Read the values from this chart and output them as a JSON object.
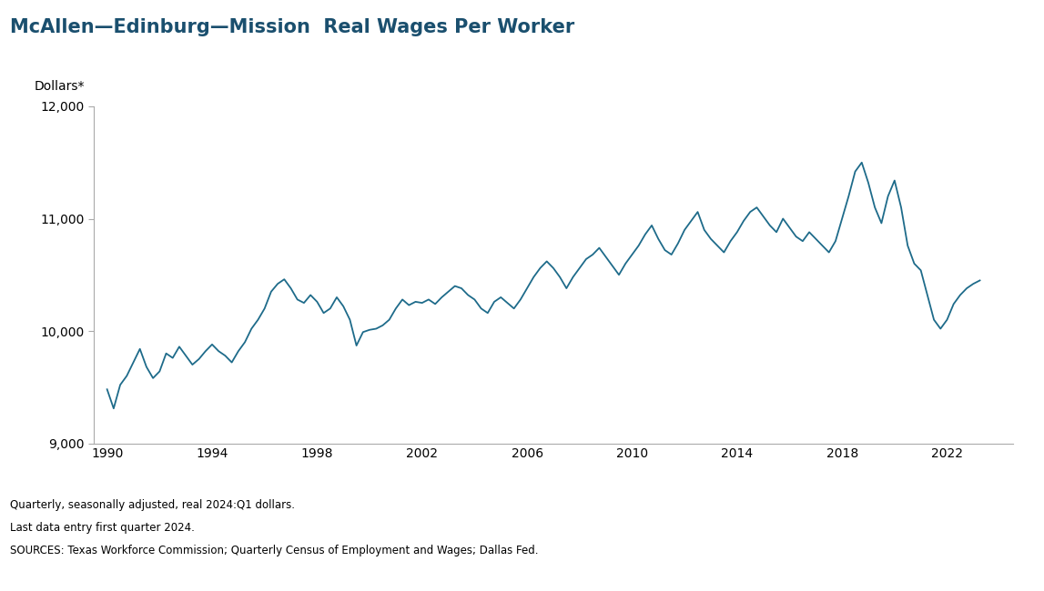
{
  "title": "McAllen—Edinburg—Mission  Real Wages Per Worker",
  "ylabel_text": "Dollars*",
  "ylim": [
    9000,
    12000
  ],
  "yticks": [
    9000,
    10000,
    11000,
    12000
  ],
  "xlim": [
    1989.5,
    2024.5
  ],
  "xticks": [
    1990,
    1994,
    1998,
    2002,
    2006,
    2010,
    2014,
    2018,
    2022
  ],
  "line_color": "#1e6b8a",
  "footnotes": [
    "Quarterly, seasonally adjusted, real 2024:Q1 dollars.",
    "Last data entry first quarter 2024.",
    "SOURCES: Texas Workforce Commission; Quarterly Census of Employment and Wages; Dallas Fed."
  ],
  "values": [
    9480,
    9310,
    9520,
    9600,
    9720,
    9840,
    9680,
    9580,
    9640,
    9800,
    9760,
    9860,
    9780,
    9700,
    9750,
    9820,
    9880,
    9820,
    9780,
    9720,
    9820,
    9900,
    10020,
    10100,
    10200,
    10350,
    10420,
    10460,
    10380,
    10280,
    10250,
    10320,
    10260,
    10160,
    10200,
    10300,
    10220,
    10100,
    9870,
    9990,
    10010,
    10020,
    10050,
    10100,
    10200,
    10280,
    10230,
    10260,
    10250,
    10280,
    10240,
    10300,
    10350,
    10400,
    10380,
    10320,
    10280,
    10200,
    10160,
    10260,
    10300,
    10250,
    10200,
    10280,
    10380,
    10480,
    10560,
    10620,
    10560,
    10480,
    10380,
    10480,
    10560,
    10640,
    10680,
    10740,
    10660,
    10580,
    10500,
    10600,
    10680,
    10760,
    10860,
    10940,
    10820,
    10720,
    10680,
    10780,
    10900,
    10980,
    11060,
    10900,
    10820,
    10760,
    10700,
    10800,
    10880,
    10980,
    11060,
    11100,
    11020,
    10940,
    10880,
    11000,
    10920,
    10840,
    10800,
    10880,
    10820,
    10760,
    10700,
    10800,
    11000,
    11200,
    11420,
    11500,
    11320,
    11100,
    10960,
    11200,
    11340,
    11100,
    10760,
    10600,
    10540,
    10320,
    10100,
    10020,
    10100,
    10240,
    10320,
    10380,
    10420,
    10450
  ]
}
